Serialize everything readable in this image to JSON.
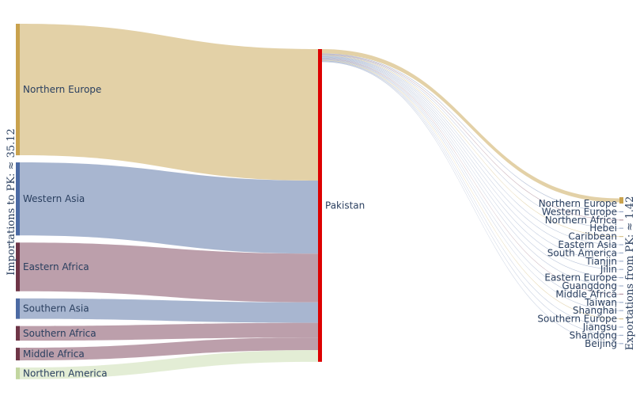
{
  "chart_data": {
    "type": "sankey",
    "left_axis_label": "Importations to PK: ≈ 35.12",
    "right_axis_label": "Exportations from PK: ≈ 1.42",
    "center": {
      "name": "Pakistan",
      "color": "#dd0000"
    },
    "sources": [
      {
        "name": "Northern Europe",
        "value": 13.5,
        "color": "#c9a24e",
        "flow_color": "#e1cfa2"
      },
      {
        "name": "Western Asia",
        "value": 7.5,
        "color": "#4c6aa3",
        "flow_color": "#a3b2cd"
      },
      {
        "name": "Eastern Africa",
        "value": 5.0,
        "color": "#6e3547",
        "flow_color": "#b89aa6"
      },
      {
        "name": "Southern Asia",
        "value": 2.1,
        "color": "#4c6aa3",
        "flow_color": "#a3b2cd"
      },
      {
        "name": "Southern Africa",
        "value": 1.5,
        "color": "#6e3547",
        "flow_color": "#b89aa6"
      },
      {
        "name": "Middle Africa",
        "value": 1.3,
        "color": "#6e3547",
        "flow_color": "#b89aa6"
      },
      {
        "name": "Northern America",
        "value": 1.2,
        "color": "#c2d6a0",
        "flow_color": "#e2ecd3"
      }
    ],
    "targets": [
      {
        "name": "Northern Europe",
        "value": 0.45,
        "color": "#c9a24e",
        "flow_color": "#e1cfa2"
      },
      {
        "name": "Western Europe",
        "value": 0.06,
        "color": "#9aa9c7",
        "flow_color": "#a3b2cd"
      },
      {
        "name": "Northern Africa",
        "value": 0.06,
        "color": "#b89aa6",
        "flow_color": "#b89aa6"
      },
      {
        "name": "Hebei",
        "value": 0.05,
        "color": "#a3b2cd",
        "flow_color": "#a3b2cd"
      },
      {
        "name": "Caribbean",
        "value": 0.05,
        "color": "#d8c48f",
        "flow_color": "#d8c48f"
      },
      {
        "name": "Eastern Asia",
        "value": 0.05,
        "color": "#a3b2cd",
        "flow_color": "#a3b2cd"
      },
      {
        "name": "South America",
        "value": 0.05,
        "color": "#a3b2cd",
        "flow_color": "#a3b2cd"
      },
      {
        "name": "Tianjin",
        "value": 0.05,
        "color": "#a3b2cd",
        "flow_color": "#a3b2cd"
      },
      {
        "name": "Jilin",
        "value": 0.05,
        "color": "#a3b2cd",
        "flow_color": "#a3b2cd"
      },
      {
        "name": "Eastern Europe",
        "value": 0.05,
        "color": "#a3b2cd",
        "flow_color": "#a3b2cd"
      },
      {
        "name": "Guangdong",
        "value": 0.05,
        "color": "#a3b2cd",
        "flow_color": "#a3b2cd"
      },
      {
        "name": "Middle Africa",
        "value": 0.05,
        "color": "#b89aa6",
        "flow_color": "#b89aa6"
      },
      {
        "name": "Taiwan",
        "value": 0.05,
        "color": "#a3b2cd",
        "flow_color": "#a3b2cd"
      },
      {
        "name": "Shanghai",
        "value": 0.05,
        "color": "#a3b2cd",
        "flow_color": "#a3b2cd"
      },
      {
        "name": "Southern Europe",
        "value": 0.05,
        "color": "#d8c48f",
        "flow_color": "#d8c48f"
      },
      {
        "name": "Jiangsu",
        "value": 0.05,
        "color": "#a3b2cd",
        "flow_color": "#a3b2cd"
      },
      {
        "name": "Shandong",
        "value": 0.05,
        "color": "#a3b2cd",
        "flow_color": "#a3b2cd"
      },
      {
        "name": "Beijing",
        "value": 0.05,
        "color": "#a3b2cd",
        "flow_color": "#a3b2cd"
      }
    ]
  }
}
